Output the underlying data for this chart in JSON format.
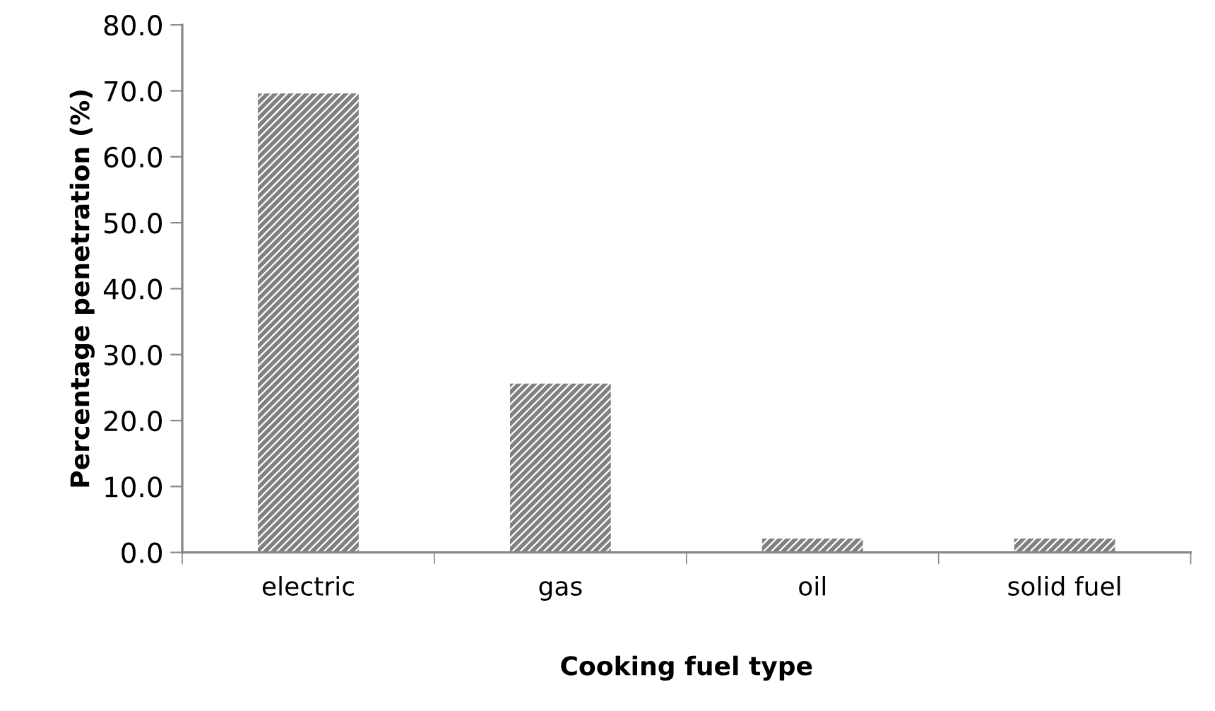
{
  "chart_data": {
    "type": "bar",
    "xlabel": "Cooking fuel type",
    "ylabel": "Percentage penetration (%)",
    "categories": [
      "electric",
      "gas",
      "oil",
      "solid fuel"
    ],
    "values": [
      69.6,
      25.6,
      2.1,
      2.1
    ],
    "color": "#808080",
    "ylim": [
      0,
      80
    ],
    "yticks": [
      {
        "value": 0,
        "label": "0.0"
      },
      {
        "value": 10,
        "label": "10.0"
      },
      {
        "value": 20,
        "label": "20.0"
      },
      {
        "value": 30,
        "label": "30.0"
      },
      {
        "value": 40,
        "label": "40.0"
      },
      {
        "value": 50,
        "label": "50.0"
      },
      {
        "value": 60,
        "label": "60.0"
      },
      {
        "value": 70,
        "label": "70.0"
      },
      {
        "value": 80,
        "label": "80.0"
      }
    ],
    "grid": false,
    "legend": false
  }
}
